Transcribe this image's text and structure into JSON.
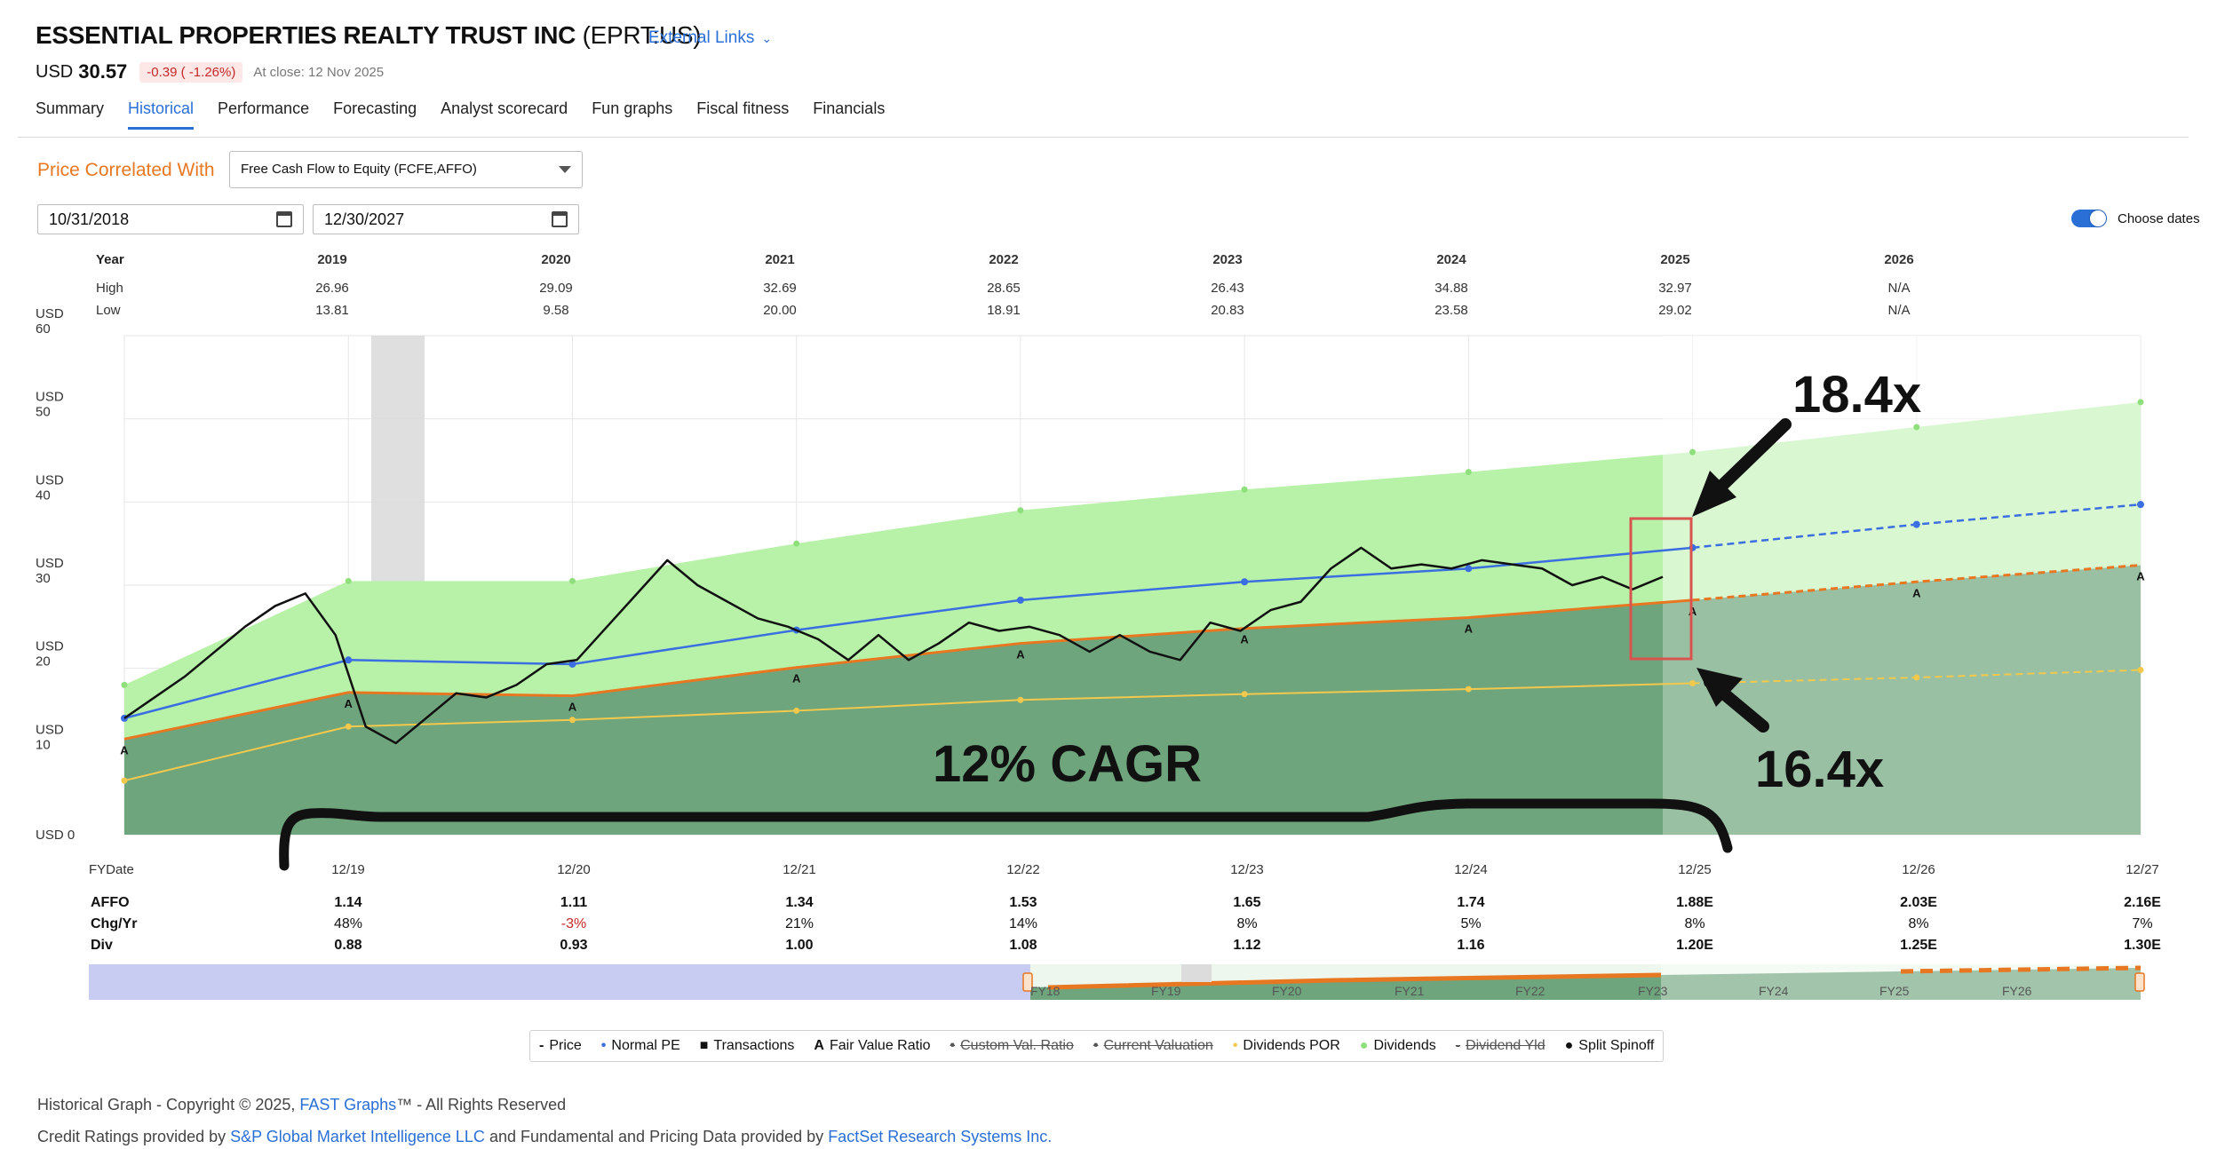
{
  "header": {
    "company": "ESSENTIAL PROPERTIES REALTY TRUST INC",
    "ticker": "(EPRT:US)",
    "external_links": "External Links",
    "currency": "USD",
    "price": "30.57",
    "change": "-0.39 ( -1.26%)",
    "close_note": "At close: 12 Nov 2025"
  },
  "tabs": [
    {
      "label": "Summary",
      "active": false
    },
    {
      "label": "Historical",
      "active": true
    },
    {
      "label": "Performance",
      "active": false
    },
    {
      "label": "Forecasting",
      "active": false
    },
    {
      "label": "Analyst scorecard",
      "active": false
    },
    {
      "label": "Fun graphs",
      "active": false
    },
    {
      "label": "Fiscal fitness",
      "active": false
    },
    {
      "label": "Financials",
      "active": false
    }
  ],
  "controls": {
    "correlated_label": "Price Correlated With",
    "correlated_value": "Free Cash Flow to Equity (FCFE,AFFO)",
    "start_date": "10/31/2018",
    "end_date": "12/30/2027",
    "choose_dates": "Choose dates",
    "choose_dates_on": true
  },
  "year_table": {
    "row_labels": [
      "Year",
      "High",
      "Low"
    ],
    "years": [
      "2019",
      "2020",
      "2021",
      "2022",
      "2023",
      "2024",
      "2025",
      "2026"
    ],
    "high": [
      "26.96",
      "29.09",
      "32.69",
      "28.65",
      "26.43",
      "34.88",
      "32.97",
      "N/A"
    ],
    "low": [
      "13.81",
      "9.58",
      "20.00",
      "18.91",
      "20.83",
      "23.58",
      "29.02",
      "N/A"
    ]
  },
  "chart_data": {
    "type": "area",
    "y_axis_unit": "USD",
    "y_ticks": [
      "USD 0",
      "USD\n10",
      "USD\n20",
      "USD\n30",
      "USD\n40",
      "USD\n50",
      "USD\n60"
    ],
    "ylim": [
      0,
      60
    ],
    "x_label": "FYDate",
    "fiscal_dates": [
      "12/19",
      "12/20",
      "12/21",
      "12/22",
      "12/23",
      "12/24",
      "12/25",
      "12/26",
      "12/27"
    ],
    "fair_value_line": [
      11.5,
      17.1,
      16.7,
      20.1,
      23.0,
      24.8,
      26.1,
      28.2,
      30.4,
      32.4
    ],
    "normal_pe_line": [
      14.0,
      21.0,
      20.5,
      24.6,
      28.2,
      30.4,
      32.0,
      34.5,
      37.3,
      39.7
    ],
    "dividends_top": [
      18.0,
      30.5,
      30.5,
      35.0,
      39.0,
      41.5,
      43.6,
      46.0,
      49.0,
      52.0
    ],
    "dividends_por_line": [
      6.5,
      13.0,
      13.8,
      14.9,
      16.2,
      16.9,
      17.5,
      18.2,
      18.9,
      19.8
    ],
    "price_series": [
      14.0,
      16.5,
      19.0,
      22.0,
      25.0,
      27.5,
      29.0,
      24.0,
      13.0,
      11.0,
      14.0,
      17.0,
      16.5,
      18.0,
      20.5,
      21.0,
      25.0,
      29.0,
      33.0,
      30.0,
      28.0,
      26.0,
      25.0,
      23.5,
      21.0,
      24.0,
      21.0,
      23.0,
      25.5,
      24.5,
      25.0,
      24.0,
      22.0,
      24.0,
      22.0,
      21.0,
      25.5,
      24.5,
      27.0,
      28.0,
      32.0,
      34.5,
      32.0,
      32.5,
      32.0,
      33.0,
      32.5,
      32.0,
      30.0,
      31.0,
      29.5,
      31.0
    ],
    "transaction_markers": [
      "A",
      "A",
      "A",
      "A",
      "A",
      "A",
      "A",
      "A",
      "A",
      "A"
    ]
  },
  "annotations": {
    "upper_multiple": "18.4x",
    "lower_multiple": "16.4x",
    "cagr": "12% CAGR"
  },
  "bottom_table": {
    "row_labels": [
      "AFFO",
      "Chg/Yr",
      "Div"
    ],
    "columns": [
      "12/19",
      "12/20",
      "12/21",
      "12/22",
      "12/23",
      "12/24",
      "12/25",
      "12/26",
      "12/27"
    ],
    "affo": [
      "1.14",
      "1.11",
      "1.34",
      "1.53",
      "1.65",
      "1.74",
      "1.88E",
      "2.03E",
      "2.16E"
    ],
    "chg": [
      "48%",
      "-3%",
      "21%",
      "14%",
      "8%",
      "5%",
      "8%",
      "8%",
      "7%"
    ],
    "div": [
      "0.88",
      "0.93",
      "1.00",
      "1.08",
      "1.12",
      "1.16",
      "1.20E",
      "1.25E",
      "1.30E"
    ]
  },
  "navigator": {
    "labels": [
      "FY18",
      "FY19",
      "FY20",
      "FY21",
      "FY22",
      "FY23",
      "FY24",
      "FY25",
      "FY26"
    ]
  },
  "legend": [
    {
      "label": "Price",
      "symbol": "-",
      "strike": false
    },
    {
      "label": "Normal PE",
      "symbol": "•",
      "strike": false
    },
    {
      "label": "Transactions",
      "symbol": "■",
      "strike": false
    },
    {
      "label": "Fair Value Ratio",
      "symbol": "A",
      "strike": false
    },
    {
      "label": "Custom Val. Ratio",
      "symbol": "•",
      "strike": true
    },
    {
      "label": "Current Valuation",
      "symbol": "•",
      "strike": true
    },
    {
      "label": "Dividends POR",
      "symbol": "•",
      "strike": false
    },
    {
      "label": "Dividends",
      "symbol": "●",
      "strike": false
    },
    {
      "label": "Dividend Yld",
      "symbol": "-",
      "strike": true
    },
    {
      "label": "Split Spinoff",
      "symbol": "●",
      "strike": false
    }
  ],
  "footer": {
    "line1_prefix": "Historical Graph - Copyright © 2025, ",
    "line1_link": "FAST Graphs",
    "line1_suffix": "™ - All Rights Reserved",
    "line2_prefix": "Credit Ratings provided by ",
    "line2_link1": "S&P Global Market Intelligence LLC",
    "line2_middle": " and Fundamental and Pricing Data provided by ",
    "line2_link2": "FactSet Research Systems Inc."
  },
  "colors": {
    "accent_blue": "#2a6fd6",
    "orange": "#e87722",
    "fair_value_fill": "#6fa57d",
    "dividends_fill": "#b7f2a8",
    "forecast_dark": "#96c4a6",
    "forecast_light": "#d4f7cc",
    "normal_pe": "#3b6ee0",
    "div_por": "#f2c94c",
    "annotation_box": "#d9534f"
  }
}
